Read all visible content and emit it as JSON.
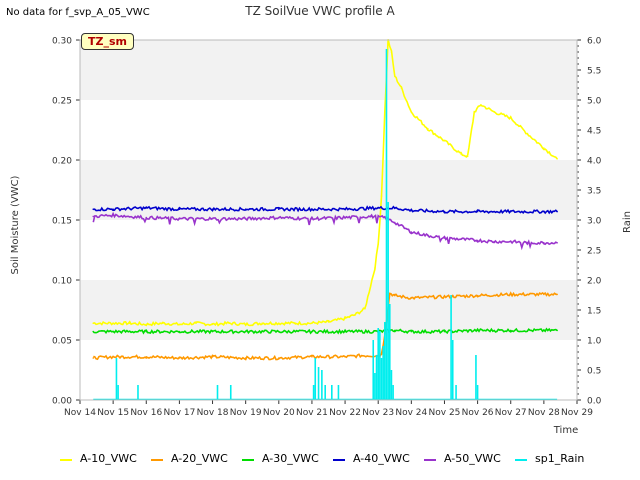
{
  "header": {
    "no_data_text": "No data for f_svp_A_05_VWC",
    "title": "TZ SoilVue VWC profile A",
    "site_tag": "TZ_sm"
  },
  "chart_data": {
    "type": "line",
    "title": "TZ SoilVue VWC profile A",
    "xlabel": "Time",
    "ylabel": "Soil Moisture (VWC)",
    "y2label": "Rain",
    "grid": "horizontal bands",
    "legend_position": "bottom",
    "x_ticks": [
      "Nov 14",
      "Nov 15",
      "Nov 16",
      "Nov 17",
      "Nov 18",
      "Nov 19",
      "Nov 20",
      "Nov 21",
      "Nov 22",
      "Nov 23",
      "Nov 24",
      "Nov 25",
      "Nov 26",
      "Nov 27",
      "Nov 28",
      "Nov 29"
    ],
    "x_range_days": [
      14,
      29
    ],
    "ylim": [
      0,
      0.3
    ],
    "y_ticks": [
      "0.00",
      "0.05",
      "0.10",
      "0.15",
      "0.20",
      "0.25",
      "0.30"
    ],
    "y_tick_values": [
      0,
      0.05,
      0.1,
      0.15,
      0.2,
      0.25,
      0.3
    ],
    "y2lim": [
      0,
      6.0
    ],
    "y2_ticks": [
      "0.0",
      "0.5",
      "1.0",
      "1.5",
      "2.0",
      "2.5",
      "3.0",
      "3.5",
      "4.0",
      "4.5",
      "5.0",
      "5.5",
      "6.0"
    ],
    "y2_tick_values": [
      0,
      0.5,
      1.0,
      1.5,
      2.0,
      2.5,
      3.0,
      3.5,
      4.0,
      4.5,
      5.0,
      5.5,
      6.0
    ],
    "series": [
      {
        "name": "A-10_VWC",
        "color": "#ffff00",
        "axis": "left",
        "x": [
          14.4,
          15.0,
          15.5,
          16.0,
          16.5,
          17.0,
          17.5,
          18.0,
          18.5,
          19.0,
          19.5,
          20.0,
          20.5,
          21.0,
          21.5,
          22.0,
          22.3,
          22.6,
          22.9,
          23.0,
          23.1,
          23.2,
          23.3,
          23.4,
          23.5,
          23.7,
          24.0,
          24.5,
          25.0,
          25.5,
          25.7,
          25.9,
          26.1,
          26.5,
          27.0,
          27.5,
          28.0,
          28.4
        ],
        "values": [
          0.064,
          0.064,
          0.064,
          0.063,
          0.064,
          0.063,
          0.064,
          0.063,
          0.064,
          0.063,
          0.064,
          0.064,
          0.064,
          0.064,
          0.065,
          0.068,
          0.071,
          0.076,
          0.11,
          0.13,
          0.17,
          0.24,
          0.3,
          0.29,
          0.27,
          0.26,
          0.24,
          0.226,
          0.216,
          0.205,
          0.203,
          0.24,
          0.246,
          0.24,
          0.235,
          0.222,
          0.21,
          0.201
        ]
      },
      {
        "name": "A-20_VWC",
        "color": "#ff9900",
        "axis": "left",
        "x": [
          14.4,
          15.0,
          16.0,
          17.0,
          18.0,
          19.0,
          20.0,
          21.0,
          22.0,
          22.5,
          23.0,
          23.1,
          23.2,
          23.35,
          23.5,
          24.0,
          25.0,
          26.0,
          27.0,
          28.0,
          28.4
        ],
        "values": [
          0.035,
          0.036,
          0.036,
          0.035,
          0.036,
          0.035,
          0.035,
          0.036,
          0.036,
          0.037,
          0.037,
          0.038,
          0.055,
          0.089,
          0.087,
          0.085,
          0.086,
          0.087,
          0.088,
          0.088,
          0.088
        ]
      },
      {
        "name": "A-30_VWC",
        "color": "#00dd00",
        "axis": "left",
        "x": [
          14.4,
          15.0,
          16.0,
          17.0,
          18.0,
          19.0,
          20.0,
          21.0,
          22.0,
          23.0,
          23.5,
          24.0,
          25.0,
          26.0,
          27.0,
          28.0,
          28.4
        ],
        "values": [
          0.057,
          0.057,
          0.057,
          0.057,
          0.057,
          0.057,
          0.057,
          0.057,
          0.057,
          0.057,
          0.058,
          0.057,
          0.057,
          0.058,
          0.058,
          0.058,
          0.058
        ]
      },
      {
        "name": "A-40_VWC",
        "color": "#0000cc",
        "axis": "left",
        "x": [
          14.4,
          15.0,
          16.0,
          17.0,
          18.0,
          19.0,
          20.0,
          21.0,
          22.0,
          23.0,
          23.5,
          24.0,
          25.0,
          26.0,
          27.0,
          28.0,
          28.4
        ],
        "values": [
          0.159,
          0.159,
          0.16,
          0.159,
          0.159,
          0.159,
          0.159,
          0.159,
          0.159,
          0.16,
          0.16,
          0.158,
          0.157,
          0.157,
          0.157,
          0.157,
          0.157
        ]
      },
      {
        "name": "A-50_VWC",
        "color": "#9933cc",
        "axis": "left",
        "x": [
          14.4,
          15.0,
          16.0,
          17.0,
          18.0,
          19.0,
          20.0,
          21.0,
          22.0,
          22.8,
          23.2,
          23.5,
          24.0,
          24.5,
          25.0,
          25.5,
          26.0,
          26.5,
          27.0,
          27.5,
          28.0,
          28.4
        ],
        "values": [
          0.153,
          0.154,
          0.152,
          0.151,
          0.151,
          0.151,
          0.152,
          0.151,
          0.152,
          0.153,
          0.152,
          0.148,
          0.14,
          0.137,
          0.135,
          0.134,
          0.133,
          0.132,
          0.132,
          0.131,
          0.131,
          0.131
        ]
      },
      {
        "name": "sp1_Rain",
        "color": "#00eeee",
        "axis": "right",
        "events": [
          [
            15.1,
            0.7
          ],
          [
            15.15,
            0.25
          ],
          [
            15.75,
            0.25
          ],
          [
            18.15,
            0.25
          ],
          [
            18.55,
            0.25
          ],
          [
            21.05,
            0.25
          ],
          [
            21.1,
            0.7
          ],
          [
            21.2,
            0.55
          ],
          [
            21.3,
            0.5
          ],
          [
            21.4,
            0.25
          ],
          [
            21.6,
            0.25
          ],
          [
            21.8,
            0.25
          ],
          [
            22.85,
            1.0
          ],
          [
            22.9,
            0.45
          ],
          [
            22.95,
            0.75
          ],
          [
            23.0,
            1.2
          ],
          [
            23.05,
            1.15
          ],
          [
            23.1,
            0.7
          ],
          [
            23.15,
            0.9
          ],
          [
            23.2,
            1.3
          ],
          [
            23.25,
            5.85
          ],
          [
            23.3,
            3.3
          ],
          [
            23.35,
            1.6
          ],
          [
            23.4,
            0.5
          ],
          [
            23.45,
            0.25
          ],
          [
            25.2,
            1.75
          ],
          [
            25.25,
            1.0
          ],
          [
            25.35,
            0.25
          ],
          [
            25.95,
            0.75
          ],
          [
            26.0,
            0.25
          ]
        ]
      }
    ]
  }
}
